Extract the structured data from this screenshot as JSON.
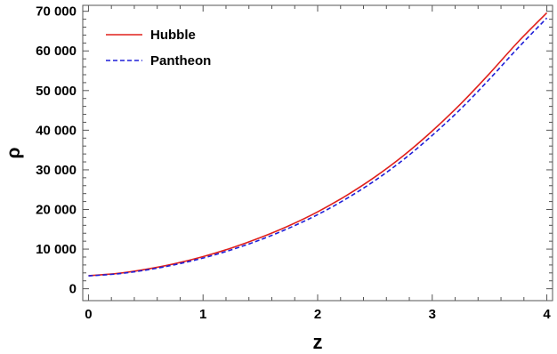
{
  "chart_data": {
    "type": "line",
    "xlabel": "z",
    "ylabel": "ρ",
    "xlim": [
      -0.05,
      4.05
    ],
    "ylim": [
      -3000,
      71500
    ],
    "x_ticks": [
      0,
      1,
      2,
      3,
      4
    ],
    "x_tick_labels": [
      "0",
      "1",
      "2",
      "3",
      "4"
    ],
    "y_ticks": [
      0,
      10000,
      20000,
      30000,
      40000,
      50000,
      60000,
      70000
    ],
    "y_tick_labels": [
      "0",
      "10 000",
      "20 000",
      "30 000",
      "40 000",
      "50 000",
      "60 000",
      "70 000"
    ],
    "grid": false,
    "legend_position": "top-left",
    "x": [
      0,
      0.25,
      0.5,
      0.75,
      1,
      1.25,
      1.5,
      1.75,
      2,
      2.25,
      2.5,
      2.75,
      3,
      3.25,
      3.5,
      3.75,
      4
    ],
    "series": [
      {
        "name": "Hubble",
        "color": "#e0201b",
        "dash": "solid",
        "values": [
          3300,
          3850,
          4900,
          6300,
          8100,
          10300,
          12900,
          15900,
          19400,
          23500,
          28200,
          33600,
          39800,
          46700,
          54300,
          62300,
          69600
        ]
      },
      {
        "name": "Pantheon",
        "color": "#1f1fd8",
        "dash": "dashed",
        "values": [
          3250,
          3750,
          4700,
          6050,
          7750,
          9850,
          12350,
          15300,
          18700,
          22700,
          27300,
          32600,
          38700,
          45400,
          52900,
          60800,
          68300
        ]
      }
    ]
  }
}
